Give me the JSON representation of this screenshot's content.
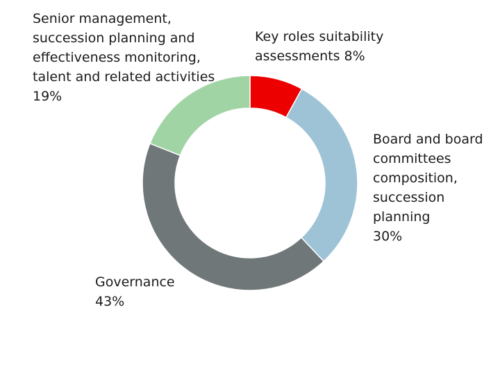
{
  "chart_data": {
    "type": "pie",
    "title": "",
    "categories": [
      "Key roles suitability assessments",
      "Board and board committees composition, succession planning",
      "Governance",
      "Senior management, succession planning and effectiveness monitoring, talent and related activities"
    ],
    "values": [
      8,
      30,
      43,
      19
    ],
    "colors": [
      "#ec0000",
      "#9ec3d6",
      "#6f7779",
      "#a1d4a4"
    ],
    "labels": [
      {
        "lines": [
          "Key roles suitability",
          "assessments 8%"
        ]
      },
      {
        "lines": [
          "Board and board",
          "committees",
          "composition,",
          "succession",
          "planning",
          "30%"
        ]
      },
      {
        "lines": [
          "Governance",
          "43%"
        ]
      },
      {
        "lines": [
          "Senior management,",
          "succession planning and",
          "effectiveness monitoring,",
          "talent and related activities",
          "19%"
        ]
      }
    ]
  }
}
